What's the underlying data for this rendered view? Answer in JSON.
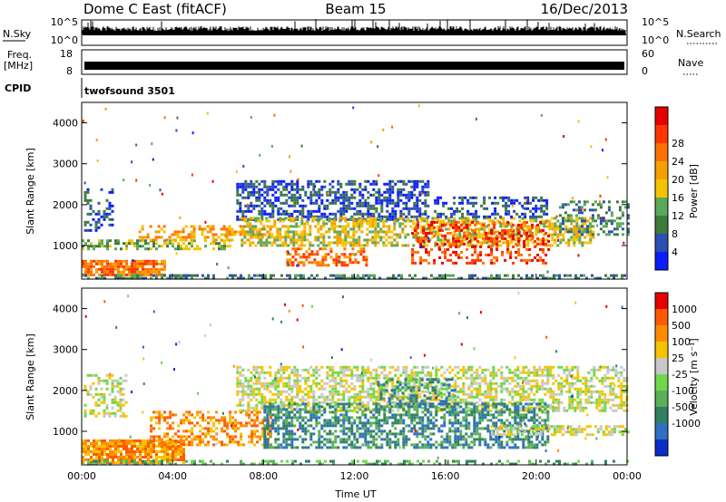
{
  "header": {
    "station": "Dome C East (fitACF)",
    "beam": "Beam 15",
    "date": "16/Dec/2013"
  },
  "top_panels": {
    "nsky_label": "N.Sky",
    "nsearch_label": "N.Search",
    "nsky_ticks": [
      "10^5",
      "10^0"
    ],
    "nsearch_ticks": [
      "10^5",
      "10^0"
    ],
    "freq_label_1": "Freq.",
    "freq_label_2": "[MHz]",
    "freq_ticks": [
      "18",
      "8"
    ],
    "nave_label": "Nave",
    "nave_ticks": [
      "60",
      "0"
    ],
    "cpid_label": "CPID",
    "cpid_value": "twofsound 3501"
  },
  "chart_data": [
    {
      "type": "heatmap",
      "quantity": "power",
      "ylabel": "Slant Range [km]",
      "xlabel": "",
      "x_ticks": [
        "00:00",
        "04:00",
        "08:00",
        "12:00",
        "16:00",
        "20:00",
        "00:00"
      ],
      "x_range_hours": [
        0,
        24
      ],
      "y_ticks": [
        1000,
        2000,
        3000,
        4000
      ],
      "ylim": [
        180,
        4500
      ],
      "colorbar": {
        "label": "Power [dB]",
        "ticks": [
          4,
          8,
          12,
          16,
          20,
          24,
          28
        ],
        "colors": [
          "#0b1cff",
          "#2c4fb4",
          "#3d7a3d",
          "#5aa85a",
          "#f5c400",
          "#f4a000",
          "#ff7000",
          "#ff3600",
          "#e60000"
        ]
      },
      "regions": [
        {
          "t0": 0.0,
          "t1": 3.7,
          "r0": 280,
          "r1": 650,
          "level": 6,
          "fill": 0.85
        },
        {
          "t0": 0.0,
          "t1": 6.5,
          "r0": 900,
          "r1": 1150,
          "level": 3,
          "fill": 0.55
        },
        {
          "t0": 0.1,
          "t1": 1.3,
          "r0": 1350,
          "r1": 2400,
          "level": 1,
          "fill": 0.35
        },
        {
          "t0": 2.5,
          "t1": 8.3,
          "r0": 1150,
          "r1": 1500,
          "level": 5,
          "fill": 0.45
        },
        {
          "t0": 6.8,
          "t1": 15.2,
          "r0": 1650,
          "r1": 2600,
          "level": 1,
          "fill": 0.55
        },
        {
          "t0": 7.0,
          "t1": 22.5,
          "r0": 1000,
          "r1": 1700,
          "level": 4,
          "fill": 0.6
        },
        {
          "t0": 9.0,
          "t1": 12.5,
          "r0": 500,
          "r1": 950,
          "level": 6,
          "fill": 0.5
        },
        {
          "t0": 14.5,
          "t1": 20.5,
          "r0": 550,
          "r1": 1600,
          "level": 7,
          "fill": 0.35
        },
        {
          "t0": 15.5,
          "t1": 20.5,
          "r0": 1700,
          "r1": 2200,
          "level": 1,
          "fill": 0.45
        },
        {
          "t0": 21.0,
          "t1": 24.0,
          "r0": 1300,
          "r1": 2100,
          "level": 2,
          "fill": 0.35
        },
        {
          "t0": 0.0,
          "t1": 24.0,
          "r0": 200,
          "r1": 300,
          "level": 2,
          "fill": 0.5
        }
      ]
    },
    {
      "type": "heatmap",
      "quantity": "velocity",
      "ylabel": "Slant Range [km]",
      "xlabel": "Time UT",
      "x_ticks": [
        "00:00",
        "04:00",
        "08:00",
        "12:00",
        "16:00",
        "20:00",
        "00:00"
      ],
      "x_range_hours": [
        0,
        24
      ],
      "y_ticks": [
        1000,
        2000,
        3000,
        4000
      ],
      "ylim": [
        180,
        4500
      ],
      "colorbar": {
        "label": "Velocity [m s⁻¹]",
        "ticks": [
          1000,
          500,
          100,
          25,
          -25,
          -100,
          -500,
          -1000
        ],
        "colors": [
          "#0b2cc8",
          "#2f6fc2",
          "#2f8060",
          "#5ab05a",
          "#6ed84a",
          "#c8c8c8",
          "#f5c400",
          "#ff8c00",
          "#ff5a00",
          "#e60000"
        ]
      },
      "regions": [
        {
          "t0": 0.0,
          "t1": 4.5,
          "r0": 250,
          "r1": 800,
          "level": 7,
          "fill": 0.85
        },
        {
          "t0": 3.0,
          "t1": 8.3,
          "r0": 700,
          "r1": 1500,
          "level": 7,
          "fill": 0.45
        },
        {
          "t0": 0.1,
          "t1": 2.0,
          "r0": 1350,
          "r1": 2400,
          "level": 5,
          "fill": 0.35
        },
        {
          "t0": 6.8,
          "t1": 24.0,
          "r0": 1500,
          "r1": 2600,
          "level": 5,
          "fill": 0.55
        },
        {
          "t0": 8.0,
          "t1": 20.5,
          "r0": 600,
          "r1": 1700,
          "level": 2,
          "fill": 0.55
        },
        {
          "t0": 13.0,
          "t1": 16.5,
          "r0": 1600,
          "r1": 2300,
          "level": 2,
          "fill": 0.35
        },
        {
          "t0": 18.0,
          "t1": 24.0,
          "r0": 900,
          "r1": 1150,
          "level": 5,
          "fill": 0.5
        },
        {
          "t0": 0.0,
          "t1": 24.0,
          "r0": 200,
          "r1": 300,
          "level": 3,
          "fill": 0.4
        }
      ]
    }
  ]
}
